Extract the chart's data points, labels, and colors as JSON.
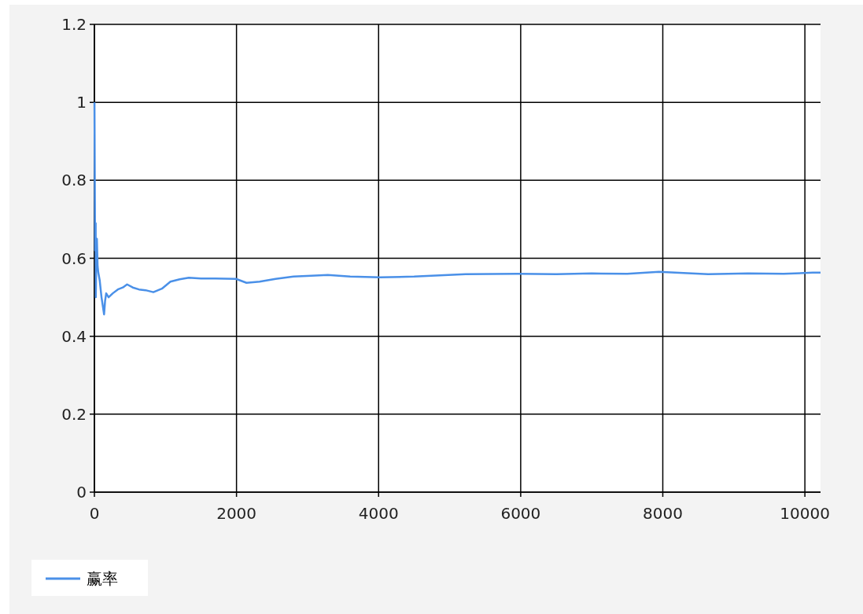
{
  "chart_data": {
    "type": "line",
    "xlim": [
      0,
      10220
    ],
    "ylim": [
      0,
      1.2
    ],
    "xticks": [
      0,
      2000,
      4000,
      6000,
      8000,
      10000
    ],
    "yticks": [
      0,
      0.2,
      0.4,
      0.6,
      0.8,
      1,
      1.2
    ],
    "grid": true,
    "legend": "bottom left",
    "line_style": "solid",
    "series": [
      {
        "name": "赢率",
        "color": "#4a90e8",
        "x": [
          1,
          10,
          18,
          20,
          28,
          35,
          45,
          55,
          75,
          100,
          136,
          150,
          166,
          200,
          258,
          330,
          400,
          460,
          540,
          627,
          720,
          830,
          950,
          1070,
          1200,
          1329,
          1500,
          1700,
          1993,
          2141,
          2325,
          2550,
          2802,
          3050,
          3285,
          3600,
          4020,
          4500,
          5224,
          5960,
          6500,
          7000,
          7500,
          7946,
          8638,
          9200,
          9700,
          10110,
          10220
        ],
        "values": [
          1.0,
          0.62,
          0.69,
          0.5,
          0.63,
          0.65,
          0.58,
          0.563,
          0.543,
          0.5,
          0.456,
          0.49,
          0.51,
          0.5,
          0.51,
          0.52,
          0.525,
          0.533,
          0.525,
          0.52,
          0.518,
          0.513,
          0.522,
          0.54,
          0.546,
          0.55,
          0.548,
          0.548,
          0.547,
          0.537,
          0.54,
          0.547,
          0.553,
          0.555,
          0.557,
          0.553,
          0.551,
          0.553,
          0.559,
          0.56,
          0.559,
          0.561,
          0.56,
          0.565,
          0.559,
          0.561,
          0.56,
          0.563,
          0.563
        ]
      }
    ]
  }
}
